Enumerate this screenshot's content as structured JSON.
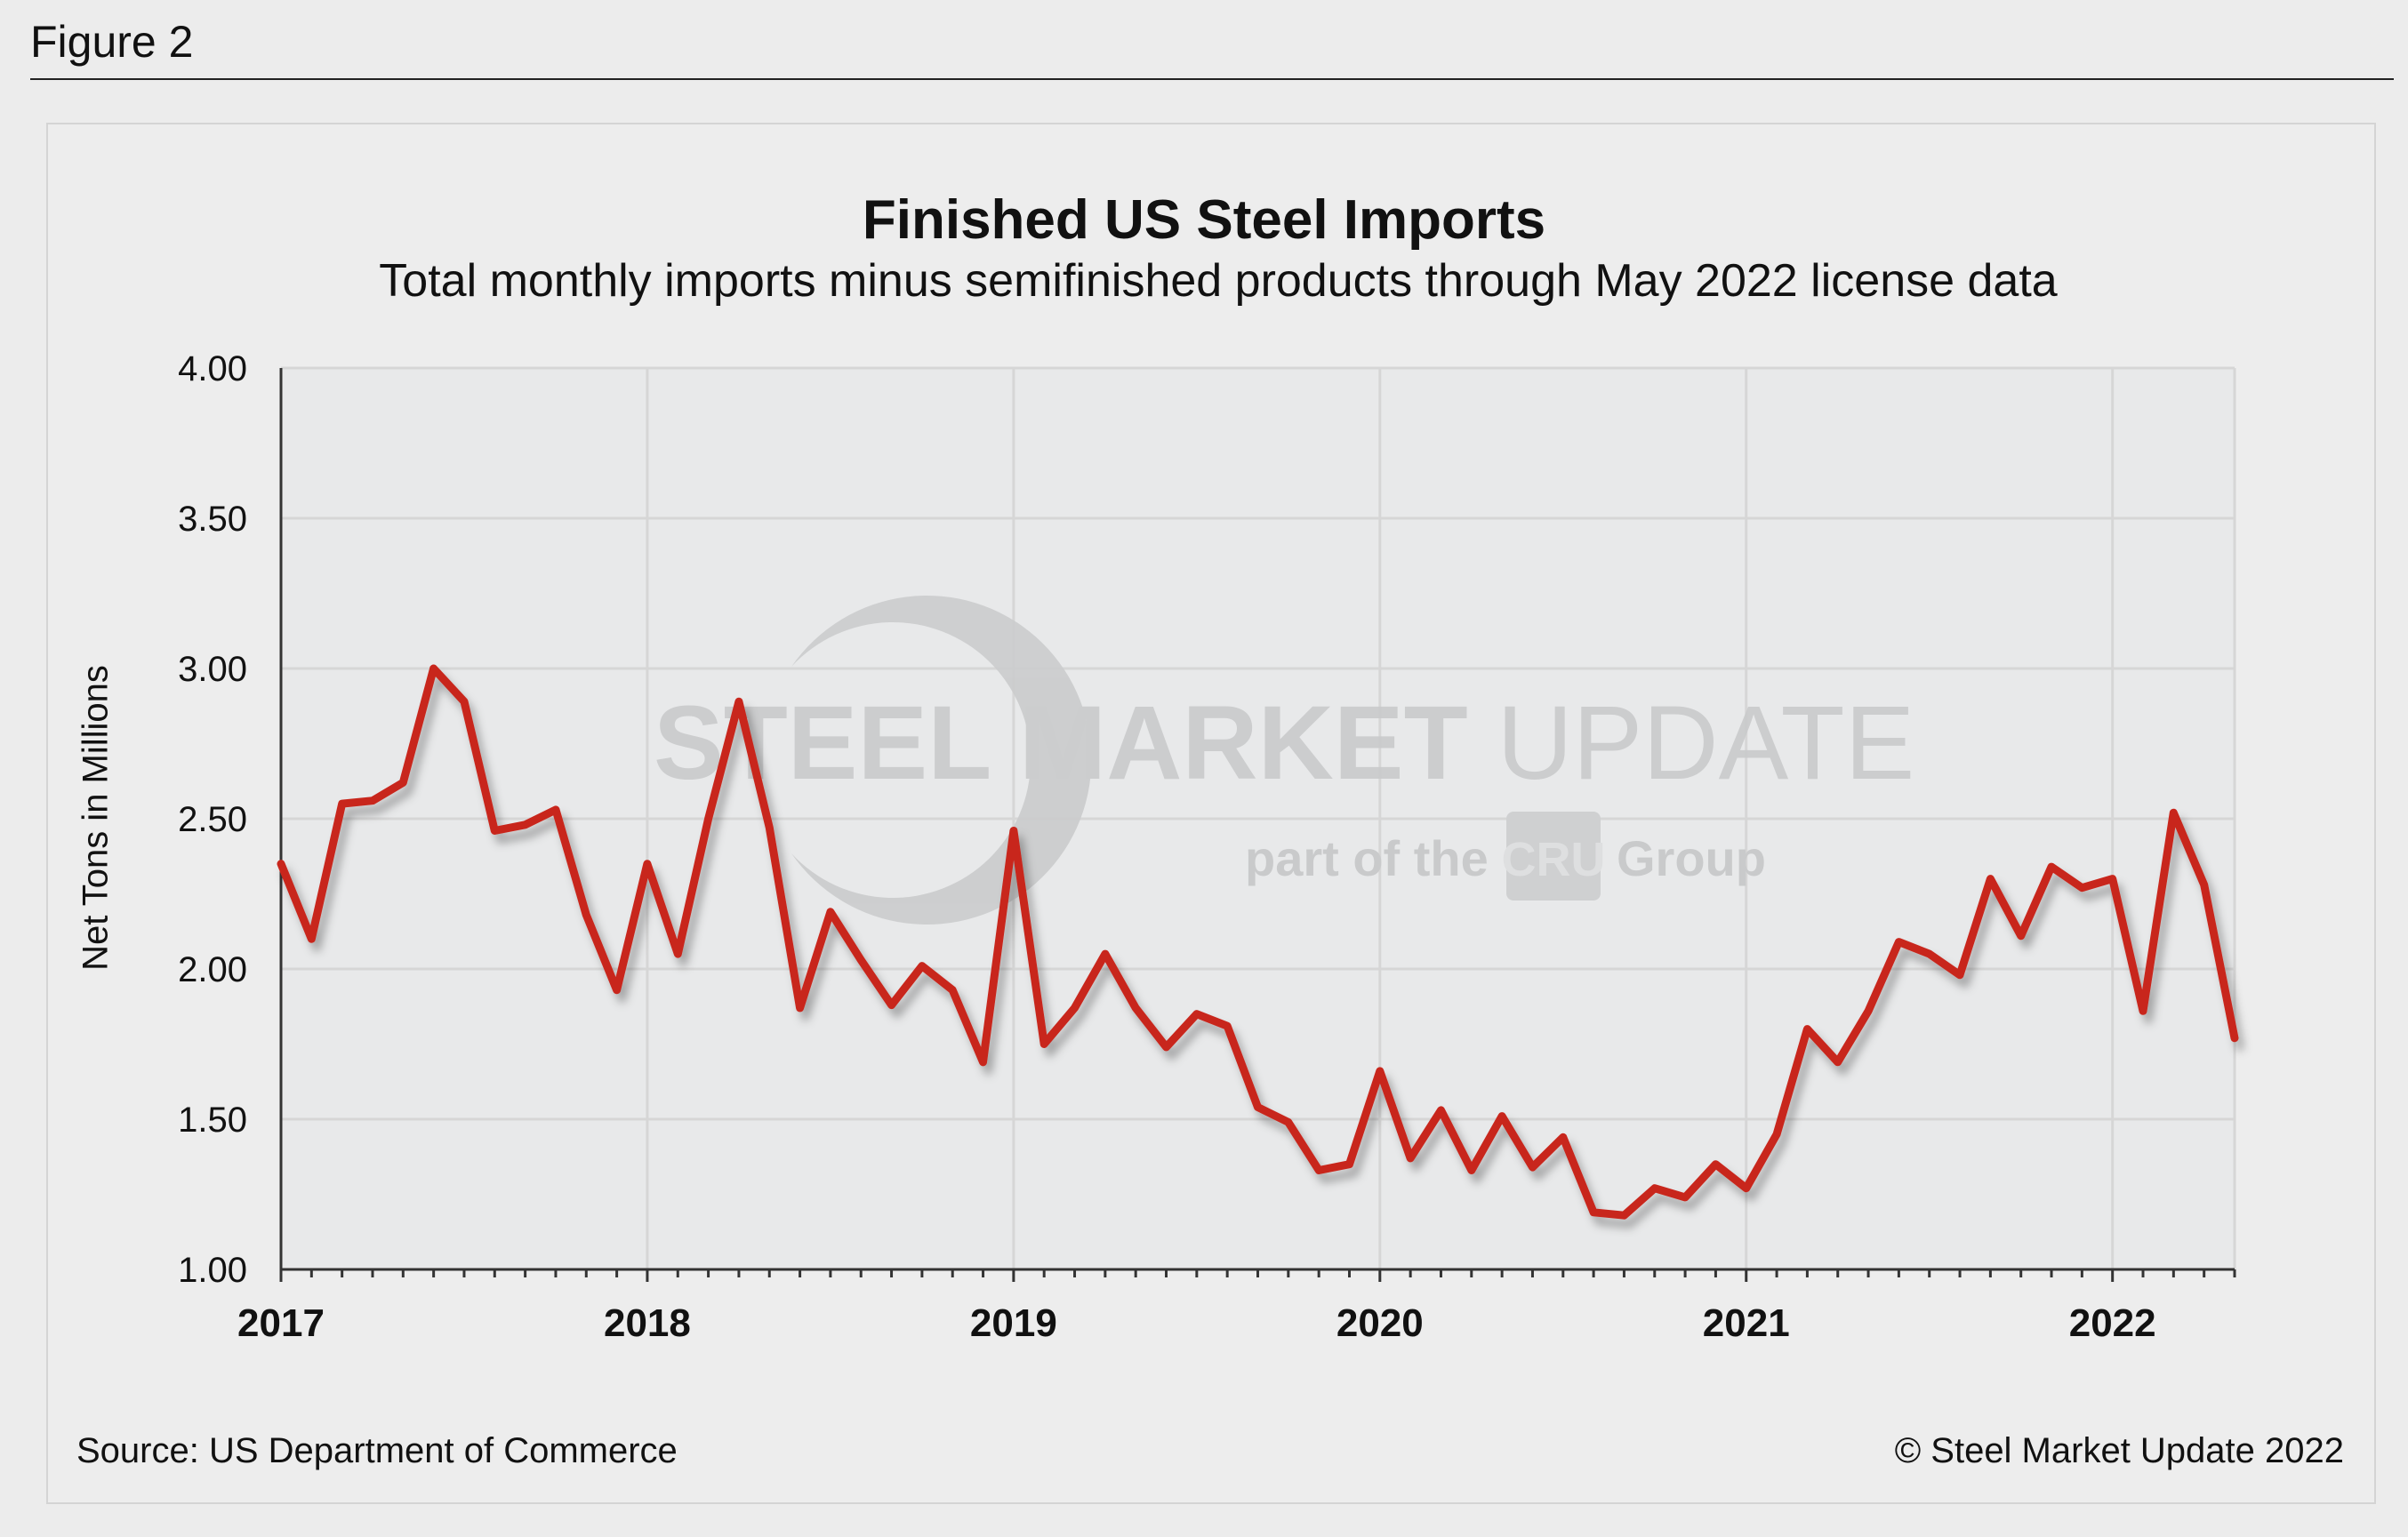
{
  "figure_label": "Figure 2",
  "source": "Source: US Department of Commerce",
  "copyright": "© Steel Market Update 2022",
  "watermark": {
    "line1_bold": "STEEL MARKET",
    "line1_light": "UPDATE",
    "line2": "part of the",
    "badge": "CRU",
    "line2_end": "Group"
  },
  "colors": {
    "line": "#c8281e",
    "plot_bg": "#e8e9ea",
    "grid": "#d6d6d6"
  },
  "chart_data": {
    "type": "line",
    "title": "Finished US Steel Imports",
    "subtitle": "Total monthly imports minus semifinished products through May 2022 license data",
    "ylabel": "Net Tons in Millions",
    "xlabel": "",
    "ylim": [
      1.0,
      4.0
    ],
    "yticks": [
      "1.00",
      "1.50",
      "2.00",
      "2.50",
      "3.00",
      "3.50",
      "4.00"
    ],
    "xticks": [
      "2017",
      "2018",
      "2019",
      "2020",
      "2021",
      "2022"
    ],
    "x_start": "2017-01",
    "x_end": "2022-05",
    "grid": true,
    "series": [
      {
        "values": [
          2.35,
          2.1,
          2.55,
          2.56,
          2.62,
          3.0,
          2.89,
          2.46,
          2.48,
          2.53,
          2.18,
          1.93,
          2.35,
          2.05,
          2.5,
          2.89,
          2.47,
          1.87,
          2.19,
          2.03,
          1.88,
          2.01,
          1.93,
          1.69,
          2.46,
          1.75,
          1.87,
          2.05,
          1.87,
          1.74,
          1.85,
          1.81,
          1.54,
          1.49,
          1.33,
          1.35,
          1.66,
          1.37,
          1.53,
          1.33,
          1.51,
          1.34,
          1.44,
          1.19,
          1.18,
          1.27,
          1.24,
          1.35,
          1.27,
          1.45,
          1.8,
          1.69,
          1.86,
          2.09,
          2.05,
          1.98,
          2.3,
          2.11,
          2.34,
          2.27,
          2.3,
          1.86,
          2.52,
          2.28,
          1.77
        ]
      }
    ]
  }
}
